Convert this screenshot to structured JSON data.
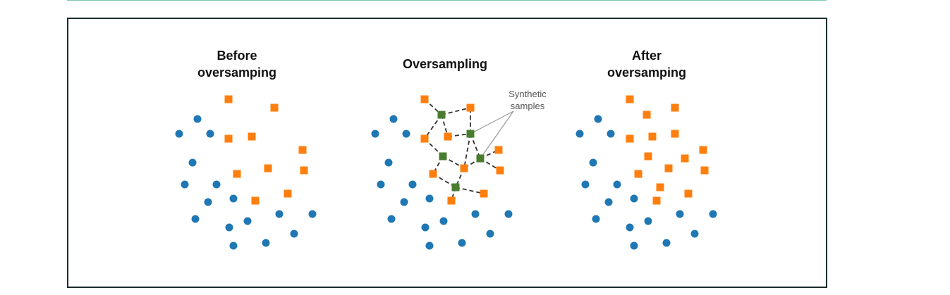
{
  "panels": [
    {
      "title_lines": [
        "Before",
        "oversamping"
      ],
      "majority": [
        [
          280,
          169
        ],
        [
          254,
          190
        ],
        [
          298,
          190
        ],
        [
          273,
          231
        ],
        [
          262,
          262
        ],
        [
          307,
          262
        ],
        [
          331,
          282
        ],
        [
          295,
          287
        ],
        [
          277,
          311
        ],
        [
          325,
          323
        ],
        [
          351,
          314
        ],
        [
          396,
          304
        ],
        [
          443,
          304
        ],
        [
          417,
          332
        ],
        [
          377,
          345
        ],
        [
          331,
          349
        ]
      ],
      "minority": [
        [
          324,
          141
        ],
        [
          389,
          153
        ],
        [
          324,
          197
        ],
        [
          357,
          194
        ],
        [
          429,
          213
        ],
        [
          380,
          239
        ],
        [
          431,
          242
        ],
        [
          336,
          247
        ],
        [
          408,
          275
        ],
        [
          362,
          285
        ]
      ],
      "synthetic": [],
      "edges": []
    },
    {
      "title_lines": [
        "Oversampling"
      ],
      "majority": [
        [
          558,
          169
        ],
        [
          532,
          190
        ],
        [
          576,
          190
        ],
        [
          551,
          231
        ],
        [
          540,
          262
        ],
        [
          585,
          262
        ],
        [
          609,
          282
        ],
        [
          573,
          287
        ],
        [
          555,
          311
        ],
        [
          603,
          323
        ],
        [
          629,
          314
        ],
        [
          674,
          304
        ],
        [
          721,
          304
        ],
        [
          695,
          332
        ],
        [
          655,
          345
        ],
        [
          609,
          349
        ]
      ],
      "minority": [
        [
          602,
          141
        ],
        [
          667,
          153
        ],
        [
          602,
          197
        ],
        [
          635,
          194
        ],
        [
          707,
          213
        ],
        [
          658,
          239
        ],
        [
          709,
          242
        ],
        [
          614,
          247
        ],
        [
          686,
          275
        ],
        [
          640,
          285
        ]
      ],
      "synthetic": [
        [
          626,
          163
        ],
        [
          667,
          190
        ],
        [
          628,
          222
        ],
        [
          681,
          225
        ],
        [
          646,
          266
        ]
      ],
      "edges": [
        [
          [
            602,
            141
          ],
          [
            626,
            163
          ]
        ],
        [
          [
            626,
            163
          ],
          [
            667,
            153
          ]
        ],
        [
          [
            626,
            163
          ],
          [
            602,
            197
          ]
        ],
        [
          [
            626,
            163
          ],
          [
            635,
            194
          ]
        ],
        [
          [
            635,
            194
          ],
          [
            667,
            190
          ]
        ],
        [
          [
            667,
            190
          ],
          [
            667,
            153
          ]
        ],
        [
          [
            667,
            190
          ],
          [
            681,
            225
          ]
        ],
        [
          [
            667,
            190
          ],
          [
            658,
            239
          ]
        ],
        [
          [
            602,
            197
          ],
          [
            628,
            222
          ]
        ],
        [
          [
            628,
            222
          ],
          [
            614,
            247
          ]
        ],
        [
          [
            628,
            222
          ],
          [
            658,
            239
          ]
        ],
        [
          [
            681,
            225
          ],
          [
            707,
            213
          ]
        ],
        [
          [
            681,
            225
          ],
          [
            709,
            242
          ]
        ],
        [
          [
            681,
            225
          ],
          [
            658,
            239
          ]
        ],
        [
          [
            658,
            239
          ],
          [
            646,
            266
          ]
        ],
        [
          [
            614,
            247
          ],
          [
            646,
            266
          ]
        ],
        [
          [
            646,
            266
          ],
          [
            686,
            275
          ]
        ],
        [
          [
            646,
            266
          ],
          [
            640,
            285
          ]
        ]
      ],
      "callout": {
        "lines": [
          "Synthetic",
          "samples"
        ],
        "anchor": [
          728,
          158
        ],
        "targets": [
          [
            667,
            190
          ],
          [
            681,
            225
          ]
        ]
      }
    },
    {
      "title_lines": [
        "After",
        "oversamping"
      ],
      "majority": [
        [
          848,
          169
        ],
        [
          822,
          190
        ],
        [
          866,
          190
        ],
        [
          841,
          231
        ],
        [
          830,
          262
        ],
        [
          875,
          262
        ],
        [
          899,
          282
        ],
        [
          863,
          287
        ],
        [
          845,
          311
        ],
        [
          893,
          323
        ],
        [
          919,
          314
        ],
        [
          964,
          304
        ],
        [
          1011,
          304
        ],
        [
          985,
          332
        ],
        [
          945,
          345
        ],
        [
          899,
          349
        ]
      ],
      "minority": [
        [
          893,
          141
        ],
        [
          957,
          153
        ],
        [
          917,
          163
        ],
        [
          893,
          197
        ],
        [
          925,
          194
        ],
        [
          957,
          190
        ],
        [
          997,
          213
        ],
        [
          919,
          222
        ],
        [
          971,
          225
        ],
        [
          948,
          239
        ],
        [
          999,
          242
        ],
        [
          905,
          247
        ],
        [
          936,
          266
        ],
        [
          976,
          275
        ],
        [
          931,
          285
        ]
      ],
      "synthetic": [],
      "edges": []
    }
  ],
  "colors": {
    "majority": "#1f77b4",
    "minority": "#ff7f0e",
    "synthetic": "#4a7c2f",
    "edge": "#333333",
    "callout_line": "#999999"
  }
}
